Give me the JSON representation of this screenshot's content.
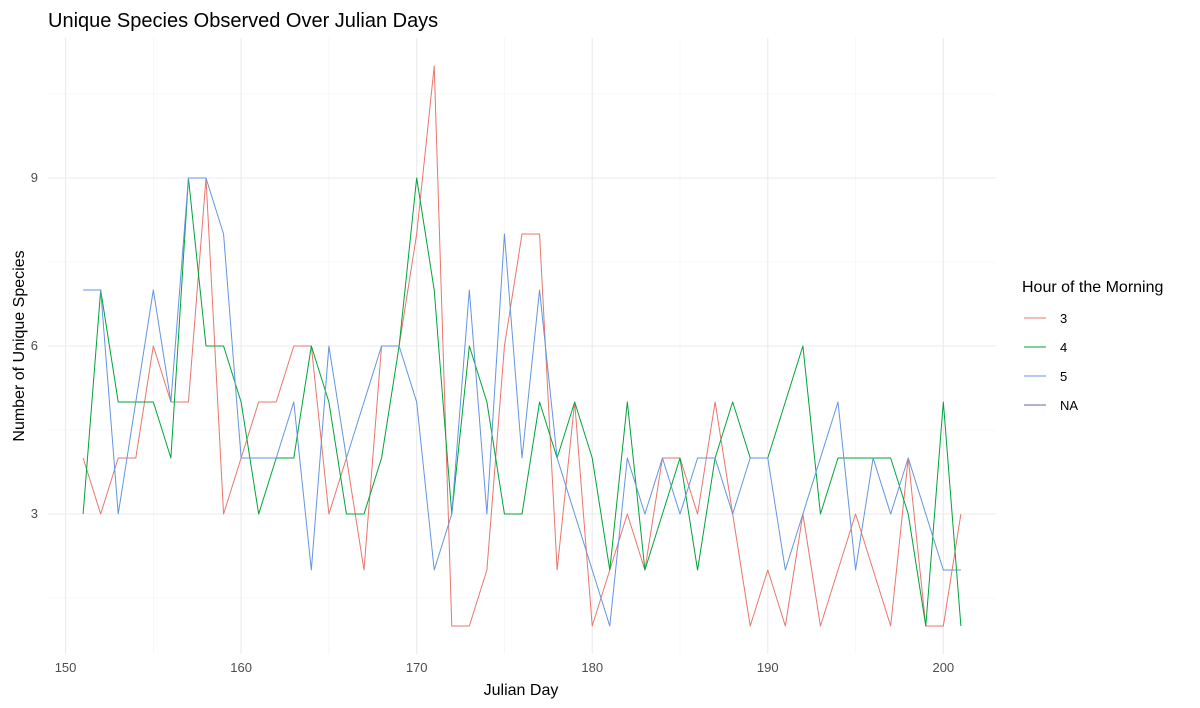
{
  "chart_data": {
    "type": "line",
    "title": "Unique Species Observed Over Julian Days",
    "xlabel": "Julian Day",
    "ylabel": "Number of Unique Species",
    "xlim": [
      149,
      203
    ],
    "ylim": [
      0.5,
      11.5
    ],
    "xticks": [
      150,
      160,
      170,
      180,
      190,
      200
    ],
    "yticks": [
      3,
      6,
      9
    ],
    "grid": true,
    "legend": {
      "title": "Hour of the Morning",
      "placement": "right"
    },
    "series": [
      {
        "name": "3",
        "color": "#e8766d",
        "x": [
          151,
          152,
          153,
          154,
          155,
          156,
          157,
          158,
          159,
          160,
          161,
          162,
          163,
          164,
          165,
          166,
          167,
          168,
          169,
          170,
          171,
          172,
          173,
          174,
          175,
          176,
          177,
          178,
          179,
          180,
          181,
          182,
          183,
          184,
          185,
          186,
          187,
          188,
          189,
          190,
          191,
          192,
          193,
          194,
          195,
          196,
          197,
          198,
          199,
          200,
          201
        ],
        "y": [
          4,
          3,
          4,
          4,
          6,
          5,
          5,
          9,
          3,
          4,
          5,
          5,
          6,
          6,
          3,
          4,
          2,
          6,
          6,
          8,
          11,
          1,
          1,
          2,
          6,
          8,
          8,
          2,
          5,
          1,
          2,
          3,
          2,
          4,
          4,
          3,
          5,
          3,
          1,
          2,
          1,
          3,
          1,
          2,
          3,
          2,
          1,
          4,
          1,
          1,
          3
        ]
      },
      {
        "name": "4",
        "color": "#00a33a",
        "x": [
          151,
          152,
          153,
          154,
          155,
          156,
          157,
          158,
          159,
          160,
          161,
          162,
          163,
          164,
          165,
          166,
          167,
          168,
          169,
          170,
          171,
          172,
          173,
          174,
          175,
          176,
          177,
          178,
          179,
          180,
          181,
          182,
          183,
          184,
          185,
          186,
          187,
          188,
          189,
          190,
          191,
          192,
          193,
          194,
          195,
          196,
          197,
          198,
          199,
          200,
          201
        ],
        "y": [
          3,
          7,
          5,
          5,
          5,
          4,
          9,
          6,
          6,
          5,
          3,
          4,
          4,
          6,
          5,
          3,
          3,
          4,
          6,
          9,
          7,
          3,
          6,
          5,
          3,
          3,
          5,
          4,
          5,
          4,
          2,
          5,
          2,
          3,
          4,
          2,
          4,
          5,
          4,
          4,
          5,
          6,
          3,
          4,
          4,
          4,
          4,
          3,
          1,
          5,
          1
        ]
      },
      {
        "name": "5",
        "color": "#6395e0",
        "x": [
          151,
          152,
          153,
          154,
          155,
          156,
          157,
          158,
          159,
          160,
          161,
          162,
          163,
          164,
          165,
          166,
          167,
          168,
          169,
          170,
          171,
          172,
          173,
          174,
          175,
          176,
          177,
          178,
          179,
          180,
          181,
          182,
          183,
          184,
          185,
          186,
          187,
          188,
          189,
          190,
          191,
          192,
          193,
          194,
          195,
          196,
          197,
          198,
          199,
          200,
          201
        ],
        "y": [
          7,
          7,
          3,
          5,
          7,
          5,
          9,
          9,
          8,
          4,
          4,
          4,
          5,
          2,
          6,
          4,
          5,
          6,
          6,
          5,
          2,
          3,
          7,
          3,
          8,
          4,
          7,
          4,
          3,
          2,
          1,
          4,
          3,
          4,
          3,
          4,
          4,
          3,
          4,
          4,
          2,
          3,
          4,
          5,
          2,
          4,
          3,
          4,
          3,
          2,
          2
        ]
      },
      {
        "name": "NA",
        "color": "#7b5b9a",
        "x": [],
        "y": []
      }
    ]
  }
}
